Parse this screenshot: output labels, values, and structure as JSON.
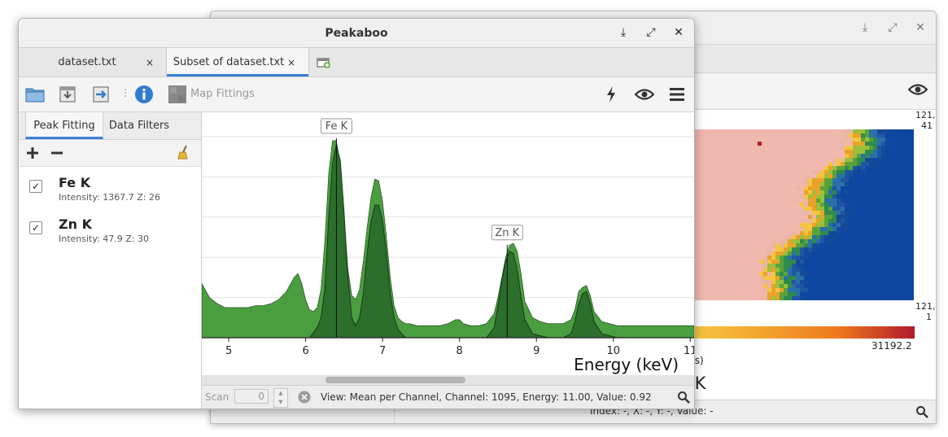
{
  "back_window": {
    "map_labels": {
      "top_right_coord_line1": "121,",
      "top_right_coord_line2": "41",
      "bottom_right_coord_line1": "121,",
      "bottom_right_coord_line2": "1",
      "scale_max": "31192.2",
      "units_fragment": "ts)",
      "map_title_fragment": "e K"
    },
    "status_text": "Index: -, X: -, Y: -, Value: -",
    "colors": {
      "high": "#b2182b",
      "mid": "#f1c232",
      "low": "#0d47a1"
    }
  },
  "window": {
    "title": "Peakaboo",
    "tabs": [
      {
        "label": "dataset.txt",
        "close": "×",
        "active": false
      },
      {
        "label": "Subset of dataset.txt",
        "close": "×",
        "active": true
      }
    ],
    "accent": "#3d7fd6"
  },
  "toolbar": {
    "map_fittings_label": "Map Fittings"
  },
  "sidebar": {
    "tabs": [
      {
        "label": "Peak Fitting",
        "active": true
      },
      {
        "label": "Data Filters",
        "active": false
      }
    ],
    "fittings": [
      {
        "name": "Fe K",
        "detail": "Intensity: 1367.7  Z: 26",
        "checked": true
      },
      {
        "name": "Zn K",
        "detail": "Intensity: 47.9  Z: 30",
        "checked": true
      }
    ]
  },
  "status": {
    "scan_label": "Scan",
    "scan_value": "0",
    "info": "View: Mean per Channel,  Channel: 1095,  Energy: 11.00,  Value: 0.92"
  },
  "chart_data": {
    "type": "area",
    "xlabel": "Energy (keV)",
    "xlim": [
      4.65,
      11.05
    ],
    "ylim": [
      0,
      1.0
    ],
    "x_ticks": [
      5,
      6,
      7,
      8,
      9,
      10,
      11
    ],
    "colors": {
      "data_fill": "#4a9e3f",
      "fit_fill": "#2c6e2c",
      "fit_line": "#1a3a1a"
    },
    "series": [
      {
        "name": "",
        "x": [
          4.65,
          4.75,
          4.85,
          4.95,
          5.05,
          5.15,
          5.25,
          5.35,
          5.45,
          5.55,
          5.65,
          5.75,
          5.85,
          5.9,
          5.95,
          6.0,
          6.05,
          6.1,
          6.15,
          6.2,
          6.25,
          6.3,
          6.35,
          6.4,
          6.45,
          6.5,
          6.55,
          6.6,
          6.65,
          6.7,
          6.75,
          6.8,
          6.85,
          6.9,
          6.95,
          7.0,
          7.05,
          7.1,
          7.15,
          7.2,
          7.25,
          7.3,
          7.35,
          7.45,
          7.55,
          7.65,
          7.75,
          7.85,
          7.95,
          8.0,
          8.05,
          8.15,
          8.25,
          8.35,
          8.45,
          8.5,
          8.55,
          8.6,
          8.65,
          8.7,
          8.75,
          8.8,
          8.85,
          8.95,
          9.05,
          9.15,
          9.25,
          9.35,
          9.45,
          9.5,
          9.55,
          9.6,
          9.65,
          9.7,
          9.75,
          9.85,
          9.95,
          10.05,
          10.15,
          10.25,
          10.35,
          10.45,
          10.55,
          10.65,
          10.75,
          10.85,
          10.95,
          11.05
        ],
        "values": [
          0.27,
          0.2,
          0.17,
          0.15,
          0.15,
          0.15,
          0.15,
          0.16,
          0.16,
          0.17,
          0.19,
          0.23,
          0.3,
          0.32,
          0.27,
          0.19,
          0.14,
          0.13,
          0.15,
          0.24,
          0.48,
          0.82,
          0.98,
          0.98,
          0.86,
          0.6,
          0.34,
          0.21,
          0.19,
          0.24,
          0.38,
          0.55,
          0.7,
          0.79,
          0.78,
          0.68,
          0.5,
          0.3,
          0.16,
          0.1,
          0.08,
          0.07,
          0.07,
          0.06,
          0.06,
          0.06,
          0.06,
          0.07,
          0.09,
          0.09,
          0.07,
          0.06,
          0.06,
          0.07,
          0.12,
          0.2,
          0.3,
          0.4,
          0.46,
          0.47,
          0.43,
          0.32,
          0.18,
          0.1,
          0.08,
          0.07,
          0.07,
          0.07,
          0.09,
          0.14,
          0.23,
          0.25,
          0.26,
          0.21,
          0.13,
          0.08,
          0.07,
          0.06,
          0.06,
          0.06,
          0.06,
          0.06,
          0.06,
          0.06,
          0.06,
          0.06,
          0.06,
          0.06
        ]
      },
      {
        "name": "",
        "x": [
          4.65,
          4.75,
          4.85,
          4.95,
          5.05,
          5.15,
          5.25,
          5.35,
          5.45,
          5.55,
          5.65,
          5.75,
          5.85,
          5.95,
          6.05,
          6.15,
          6.2,
          6.25,
          6.3,
          6.35,
          6.4,
          6.45,
          6.5,
          6.55,
          6.6,
          6.65,
          6.7,
          6.75,
          6.8,
          6.85,
          6.9,
          6.95,
          7.0,
          7.05,
          7.1,
          7.15,
          7.2,
          7.3,
          7.45,
          7.65,
          7.85,
          8.05,
          8.25,
          8.35,
          8.45,
          8.5,
          8.55,
          8.6,
          8.65,
          8.7,
          8.75,
          8.8,
          8.85,
          8.95,
          9.15,
          9.35,
          9.45,
          9.5,
          9.55,
          9.6,
          9.65,
          9.7,
          9.75,
          9.85,
          10.05,
          10.45,
          11.05
        ],
        "values": [
          0.0,
          0.0,
          0.0,
          0.0,
          0.0,
          0.0,
          0.0,
          0.0,
          0.0,
          0.0,
          0.0,
          0.0,
          0.0,
          0.0,
          0.0,
          0.05,
          0.1,
          0.24,
          0.6,
          0.87,
          0.96,
          0.88,
          0.62,
          0.3,
          0.1,
          0.06,
          0.1,
          0.22,
          0.42,
          0.58,
          0.66,
          0.66,
          0.58,
          0.42,
          0.22,
          0.1,
          0.04,
          0.0,
          0.0,
          0.0,
          0.0,
          0.0,
          0.0,
          0.0,
          0.05,
          0.16,
          0.28,
          0.38,
          0.43,
          0.42,
          0.34,
          0.2,
          0.09,
          0.02,
          0.0,
          0.0,
          0.02,
          0.08,
          0.17,
          0.22,
          0.23,
          0.17,
          0.08,
          0.02,
          0.0,
          0.0,
          0.0
        ]
      }
    ],
    "annotations": [
      {
        "label": "Fe K",
        "x": 6.4,
        "y": 0.96
      },
      {
        "label": "Zn K",
        "x": 8.62,
        "y": 0.43
      }
    ],
    "grid": true,
    "legend": "none"
  }
}
